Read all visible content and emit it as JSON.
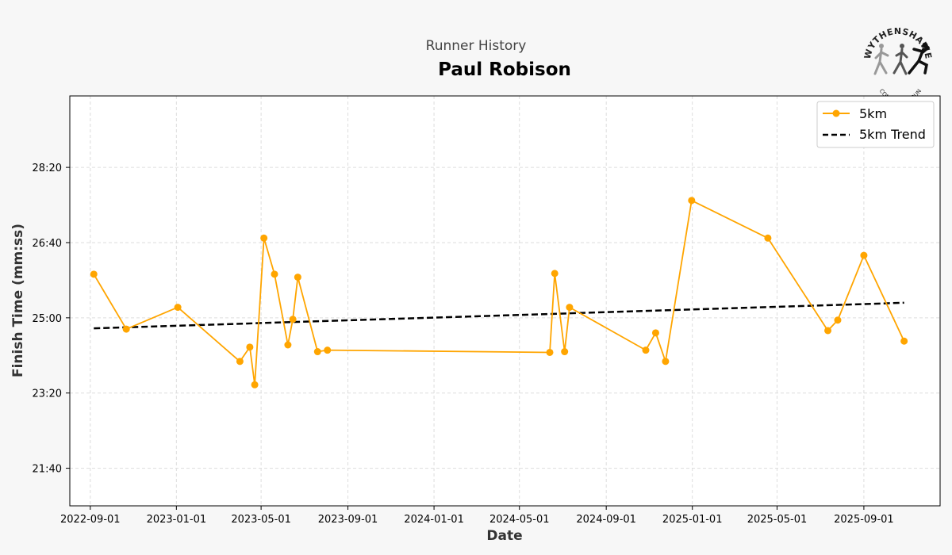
{
  "header": {
    "subtitle": "Runner History",
    "runner_name": "Paul Robison"
  },
  "logo": {
    "top_text": "WYTHENSHAWE",
    "bottom_text": "COMMUNITY RUN"
  },
  "colors": {
    "series": "#ffa500",
    "trend": "#000000",
    "grid": "#dddddd",
    "background": "#f7f7f7",
    "plot_background": "#ffffff"
  },
  "chart_data": {
    "type": "line",
    "title": "Paul Robison",
    "subtitle": "Runner History",
    "xlabel": "Date",
    "ylabel": "Finish Time (mm:ss)",
    "x_ticks": [
      "2022-09-01",
      "2023-01-01",
      "2023-05-01",
      "2023-09-01",
      "2024-01-01",
      "2024-05-01",
      "2024-09-01",
      "2025-01-01",
      "2025-05-01",
      "2025-09-01"
    ],
    "y_ticks": [
      "21:40",
      "23:20",
      "25:00",
      "26:40",
      "28:20"
    ],
    "xlim": [
      "2022-08-03",
      "2025-12-18"
    ],
    "ylim": [
      "20:50",
      "29:55"
    ],
    "grid": true,
    "legend_position": "top-right",
    "series": [
      {
        "name": "5km",
        "points": [
          {
            "x": "2022-09-06",
            "y": "25:58"
          },
          {
            "x": "2022-10-22",
            "y": "24:45"
          },
          {
            "x": "2023-01-03",
            "y": "25:14"
          },
          {
            "x": "2023-04-01",
            "y": "24:02"
          },
          {
            "x": "2023-04-15",
            "y": "24:21"
          },
          {
            "x": "2023-04-22",
            "y": "23:31"
          },
          {
            "x": "2023-05-05",
            "y": "26:46"
          },
          {
            "x": "2023-05-20",
            "y": "25:58"
          },
          {
            "x": "2023-06-08",
            "y": "24:24"
          },
          {
            "x": "2023-06-15",
            "y": "24:58"
          },
          {
            "x": "2023-06-22",
            "y": "25:54"
          },
          {
            "x": "2023-07-20",
            "y": "24:15"
          },
          {
            "x": "2023-08-03",
            "y": "24:17"
          },
          {
            "x": "2024-06-13",
            "y": "24:14"
          },
          {
            "x": "2024-06-20",
            "y": "25:59"
          },
          {
            "x": "2024-07-04",
            "y": "24:15"
          },
          {
            "x": "2024-07-11",
            "y": "25:14"
          },
          {
            "x": "2024-10-27",
            "y": "24:17"
          },
          {
            "x": "2024-11-10",
            "y": "24:40"
          },
          {
            "x": "2024-11-24",
            "y": "24:02"
          },
          {
            "x": "2024-12-31",
            "y": "27:36"
          },
          {
            "x": "2025-04-18",
            "y": "26:46"
          },
          {
            "x": "2025-07-12",
            "y": "24:43"
          },
          {
            "x": "2025-07-26",
            "y": "24:57"
          },
          {
            "x": "2025-09-01",
            "y": "26:23"
          },
          {
            "x": "2025-10-28",
            "y": "24:29"
          }
        ]
      },
      {
        "name": "5km Trend",
        "style": "dashed",
        "points": [
          {
            "x": "2022-09-06",
            "y": "24:46"
          },
          {
            "x": "2025-10-28",
            "y": "25:20"
          }
        ]
      }
    ]
  }
}
